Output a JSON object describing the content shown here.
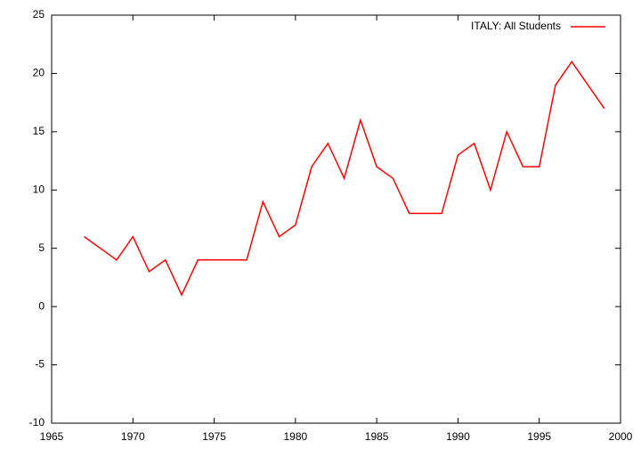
{
  "chart_data": {
    "type": "line",
    "x": [
      1967,
      1969,
      1970,
      1971,
      1972,
      1973,
      1974,
      1975,
      1976,
      1977,
      1978,
      1979,
      1980,
      1981,
      1982,
      1983,
      1984,
      1985,
      1986,
      1987,
      1988,
      1989,
      1990,
      1991,
      1992,
      1993,
      1994,
      1995,
      1996,
      1997,
      1999
    ],
    "series": [
      {
        "name": "ITALY: All Students",
        "color": "#ff0000",
        "values": [
          6,
          4,
          6,
          3,
          4,
          1,
          4,
          4,
          4,
          4,
          9,
          6,
          7,
          12,
          14,
          11,
          16,
          12,
          11,
          8,
          8,
          8,
          13,
          14,
          10,
          15,
          12,
          12,
          19,
          21,
          17
        ]
      }
    ],
    "xlim": [
      1965,
      2000
    ],
    "xticks": [
      1965,
      1970,
      1975,
      1980,
      1985,
      1990,
      1995,
      2000
    ],
    "ylim": [
      -10,
      25
    ],
    "yticks": [
      -10,
      -5,
      0,
      5,
      10,
      15,
      20,
      25
    ],
    "legend": "top-right"
  }
}
